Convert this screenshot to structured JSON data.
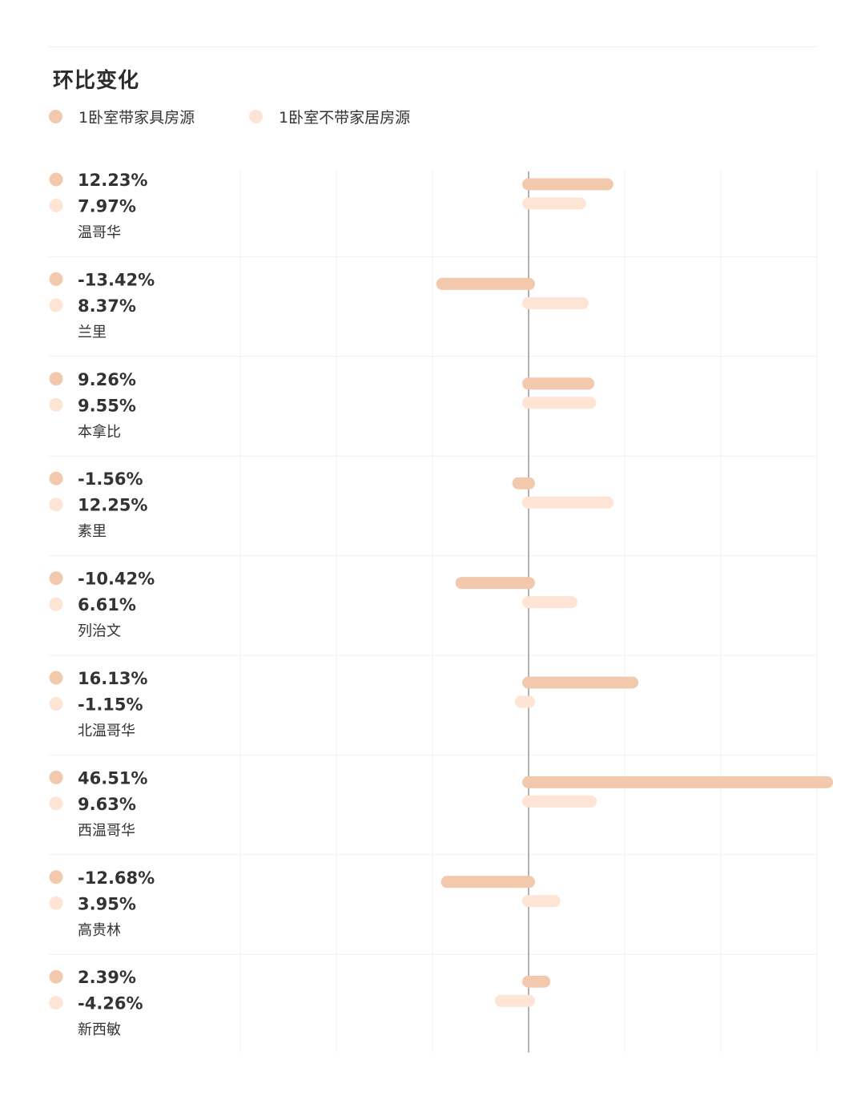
{
  "title": "环比变化",
  "legend": [
    {
      "label": "1卧室带家具房源",
      "color": "#f2c9ad"
    },
    {
      "label": "1卧室不带家居房源",
      "color": "#fde4d4"
    }
  ],
  "chart_data": {
    "type": "bar",
    "orientation": "horizontal",
    "title": "环比变化",
    "categories": [
      "温哥华",
      "兰里",
      "本拿比",
      "素里",
      "列治文",
      "北温哥华",
      "西温哥华",
      "高贵林",
      "新西敏"
    ],
    "series": [
      {
        "name": "1卧室带家具房源",
        "color": "#f2c9ad",
        "values": [
          12.23,
          -13.42,
          9.26,
          -1.56,
          -10.42,
          16.13,
          46.51,
          -12.68,
          2.39
        ],
        "labels": [
          "12.23%",
          "-13.42%",
          "9.26%",
          "-1.56%",
          "-10.42%",
          "16.13%",
          "46.51%",
          "-12.68%",
          "2.39%"
        ]
      },
      {
        "name": "1卧室不带家居房源",
        "color": "#fde4d4",
        "values": [
          7.97,
          8.37,
          9.55,
          12.25,
          6.61,
          -1.15,
          9.63,
          3.95,
          -4.26
        ],
        "labels": [
          "7.97%",
          "8.37%",
          "9.55%",
          "12.25%",
          "6.61%",
          "-1.15%",
          "9.63%",
          "3.95%",
          "-4.26%"
        ]
      }
    ],
    "xlim": [
      -30,
      45
    ],
    "grid": true,
    "zero_line": true
  }
}
